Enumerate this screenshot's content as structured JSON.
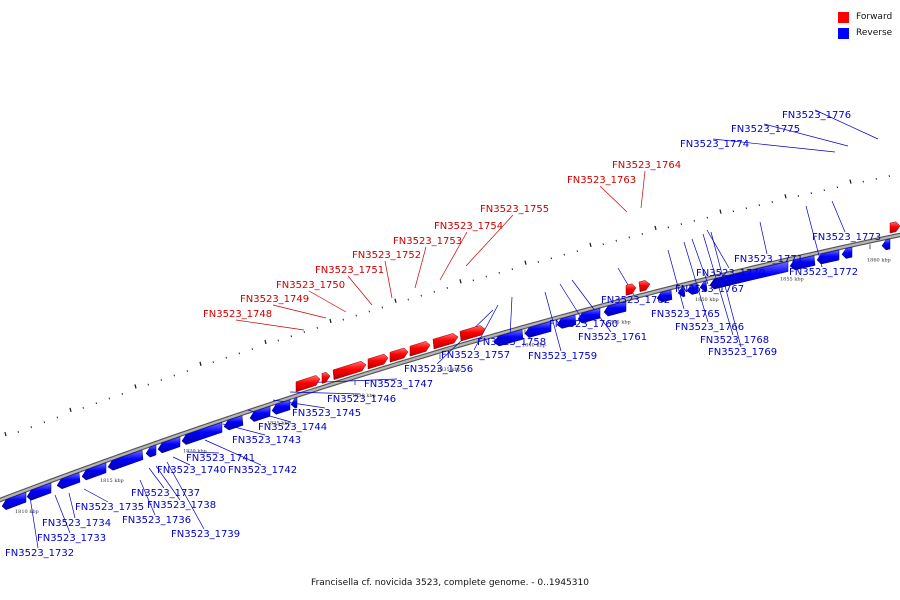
{
  "legend": [
    {
      "label": "Forward",
      "color": "#ff0000"
    },
    {
      "label": "Reverse",
      "color": "#0000ff"
    }
  ],
  "caption": "Francisella cf. novicida 3523, complete genome. - 0..1945310",
  "colors": {
    "forward": "#ff0000",
    "reverse": "#0000ff",
    "backbone": "#8a8a8a"
  },
  "kbp_ticks": [
    "1810 kbp",
    "1815 kbp",
    "1820 kbp",
    "1825 kbp",
    "1830 kbp",
    "1835 kbp",
    "1840 kbp",
    "1845 kbp",
    "1850 kbp",
    "1855 kbp",
    "1860 kbp"
  ],
  "genes_reverse": [
    "FN3523_1732",
    "FN3523_1733",
    "FN3523_1734",
    "FN3523_1735",
    "FN3523_1736",
    "FN3523_1737",
    "FN3523_1738",
    "FN3523_1739",
    "FN3523_1740",
    "FN3523_1741",
    "FN3523_1742",
    "FN3523_1743",
    "FN3523_1744",
    "FN3523_1745",
    "FN3523_1746",
    "FN3523_1747",
    "FN3523_1756",
    "FN3523_1757",
    "FN3523_1758",
    "FN3523_1759",
    "FN3523_1760",
    "FN3523_1761",
    "FN3523_1762",
    "FN3523_1765",
    "FN3523_1766",
    "FN3523_1767",
    "FN3523_1768",
    "FN3523_1769",
    "FN3523_1770",
    "FN3523_1771",
    "FN3523_1772",
    "FN3523_1773",
    "FN3523_1774",
    "FN3523_1775",
    "FN3523_1776"
  ],
  "genes_forward": [
    "FN3523_1748",
    "FN3523_1749",
    "FN3523_1750",
    "FN3523_1751",
    "FN3523_1752",
    "FN3523_1753",
    "FN3523_1754",
    "FN3523_1755",
    "FN3523_1763",
    "FN3523_1764"
  ]
}
